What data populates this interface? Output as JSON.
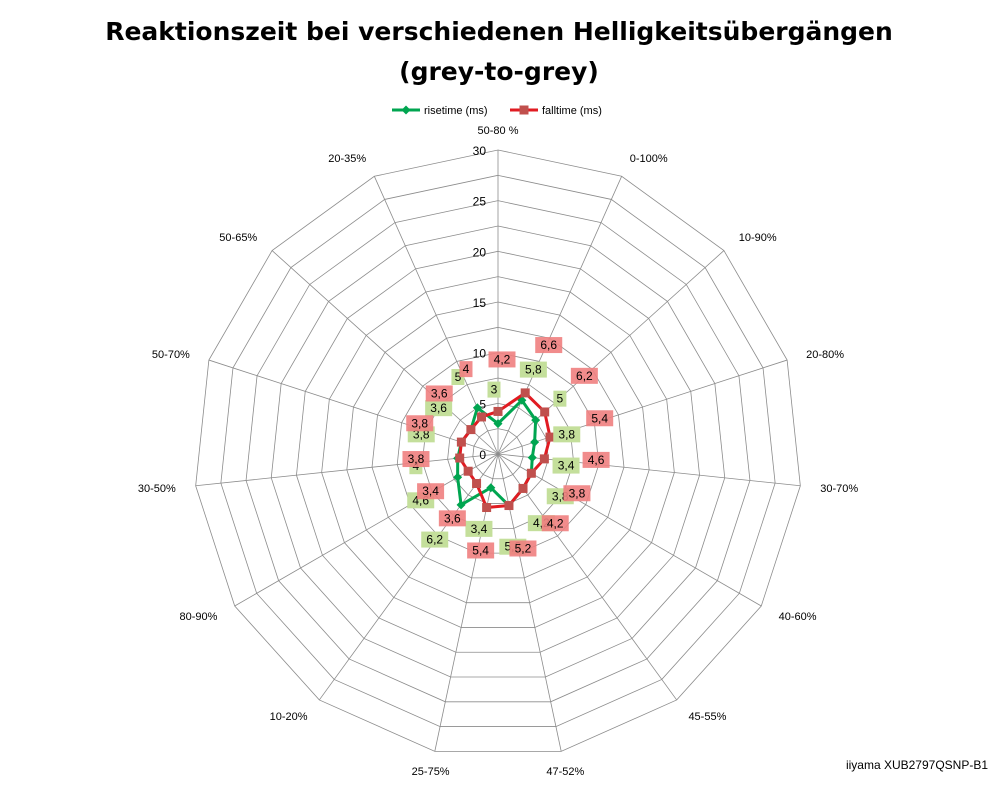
{
  "chart_data": {
    "type": "radar",
    "title_line1": "Reaktionszeit bei verschiedenen Helligkeitsübergängen",
    "title_line2": "(grey-to-grey)",
    "categories": [
      "50-80 %",
      "0-100%",
      "10-90%",
      "20-80%",
      "30-70%",
      "40-60%",
      "45-55%",
      "47-52%",
      "25-75%",
      "10-20%",
      "80-90%",
      "30-50%",
      "50-70%",
      "50-65%",
      "20-35%"
    ],
    "radial_ticks": [
      "0",
      "5",
      "10",
      "15",
      "20",
      "25",
      "30"
    ],
    "rmax": 30,
    "grid": true,
    "legend_position": "top",
    "series": [
      {
        "name": "risetime (ms)",
        "color": "#00A550",
        "label_bg": "#C4DF9B",
        "values": [
          3,
          5.8,
          5,
          3.8,
          3.4,
          3.8,
          4.2,
          5.2,
          3.4,
          6.2,
          4.6,
          4,
          3.8,
          3.6,
          5
        ],
        "labels": [
          "3",
          "5,8",
          "5",
          "3,8",
          "3,4",
          "3,8",
          "4,2",
          "5,2",
          "3,4",
          "6,2",
          "4,6",
          "4",
          "3,8",
          "3,6",
          "5"
        ]
      },
      {
        "name": "falltime (ms)",
        "color": "#E11B22",
        "label_bg": "#F08080",
        "values": [
          4.2,
          6.6,
          6.2,
          5.4,
          4.6,
          3.8,
          4.2,
          5.2,
          5.4,
          3.6,
          3.4,
          3.8,
          3.8,
          3.6,
          4
        ],
        "labels": [
          "4,2",
          "6,6",
          "6,2",
          "5,4",
          "4,6",
          "3,8",
          "4,2",
          "5,2",
          "5,4",
          "3,6",
          "3,4",
          "3,8",
          "3,8",
          "3,6",
          "4"
        ]
      }
    ]
  },
  "watermark": "iiyama XUB2797QSNP-B1"
}
